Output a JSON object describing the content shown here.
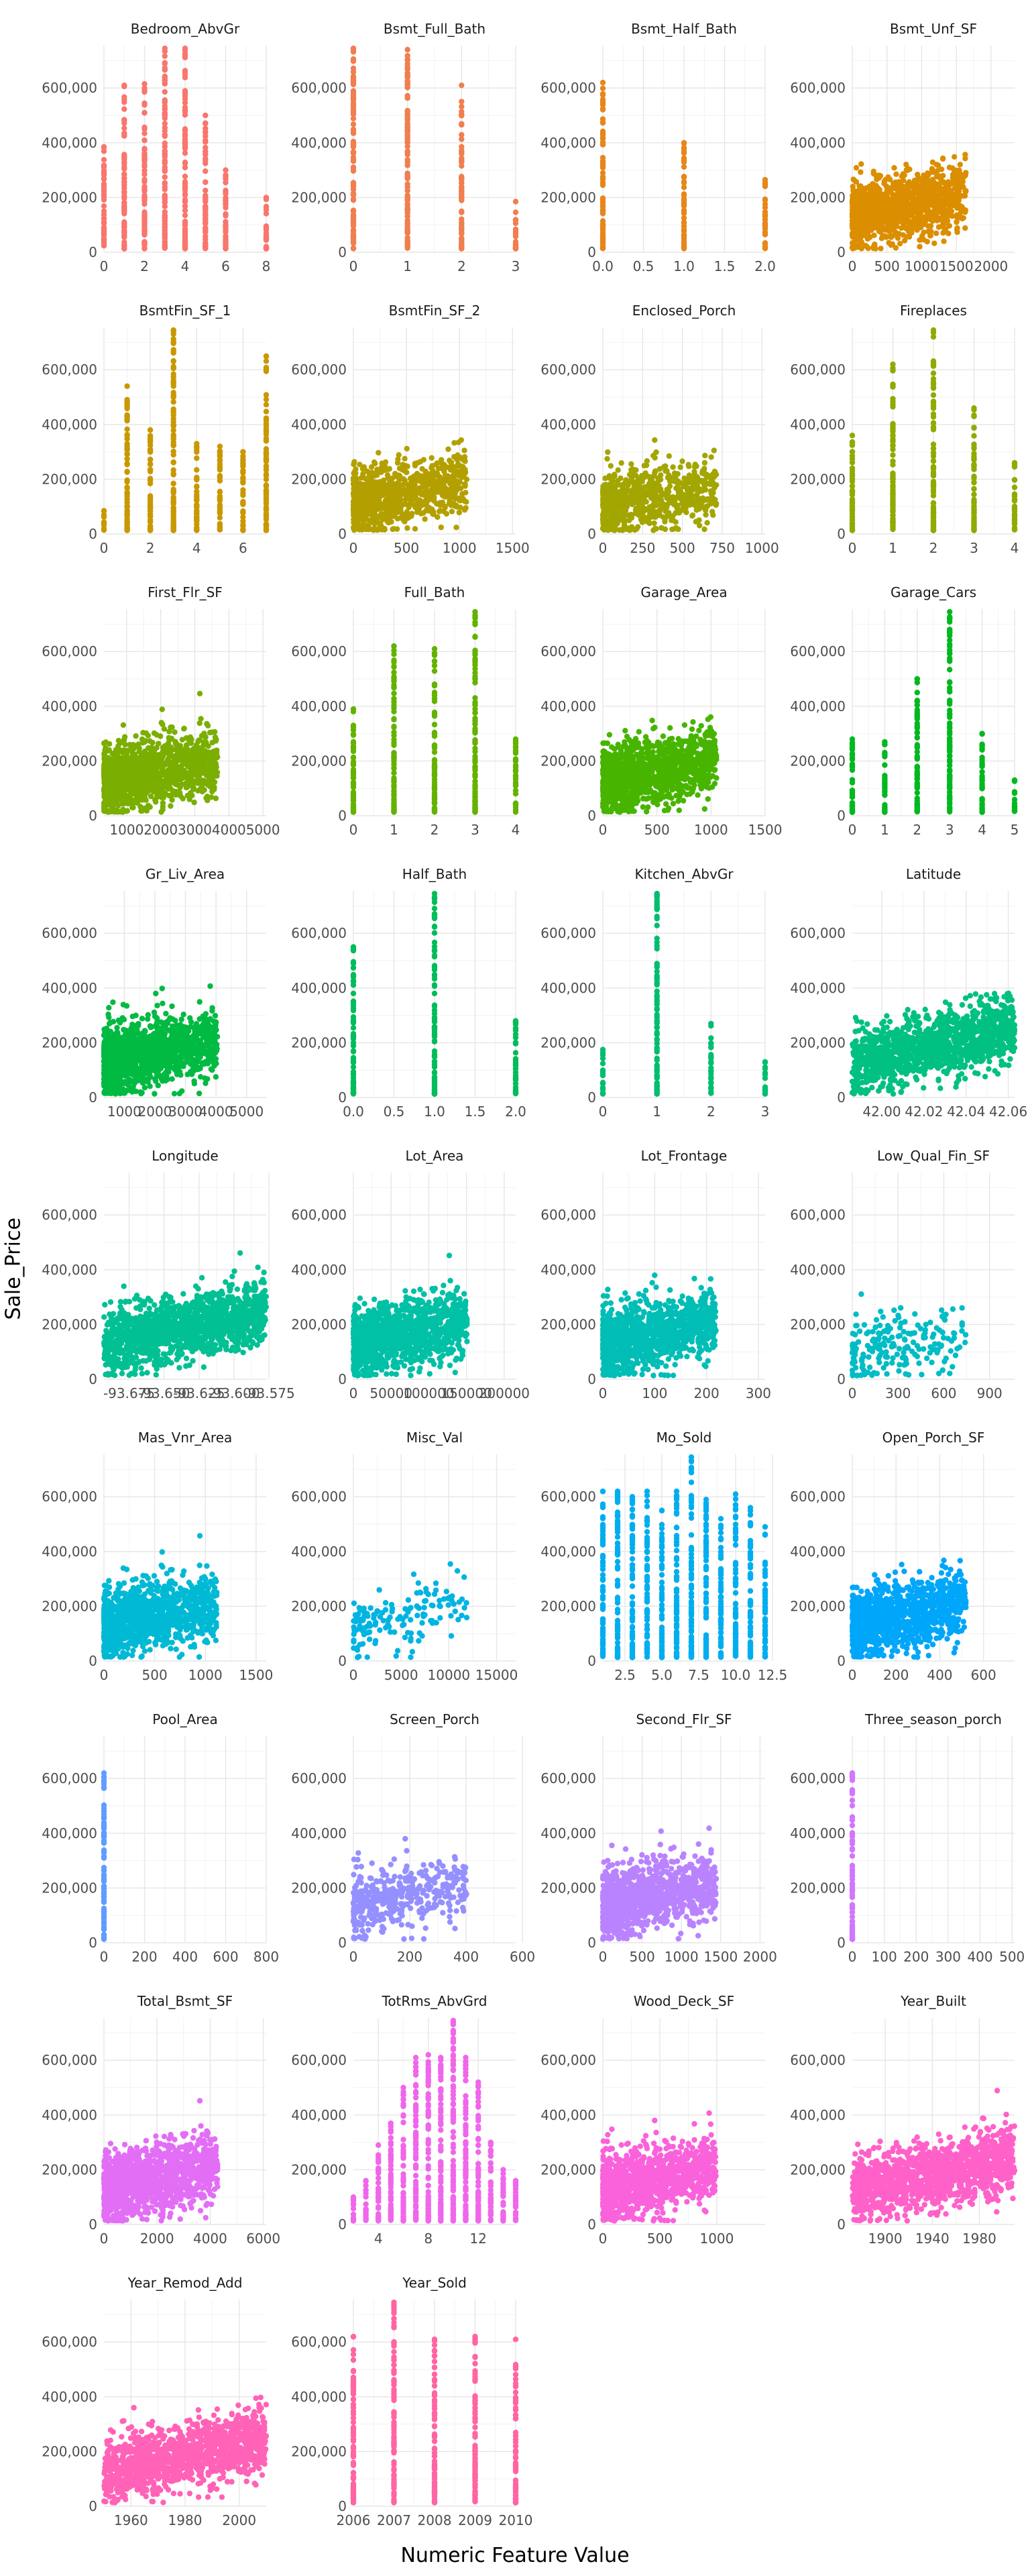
{
  "chart_data": {
    "type": "scatter",
    "xlabel": "Numeric Feature Value",
    "ylabel": "Sale_Price",
    "y_ticks": [
      0,
      200000,
      400000,
      600000
    ],
    "y_tick_labels": [
      "0",
      "200,000",
      "400,000",
      "600,000"
    ],
    "ylim": [
      0,
      755000
    ],
    "grid": true,
    "panels": [
      {
        "name": "Bedroom_AbvGr",
        "color": "#F8766D",
        "xlim": [
          0,
          8
        ],
        "x_ticks": [
          0,
          2,
          4,
          6,
          8
        ],
        "x_tick_labels": [
          "0",
          "2",
          "4",
          "6",
          "8"
        ],
        "discrete_x": [
          0,
          1,
          2,
          3,
          4,
          5,
          6,
          8
        ],
        "y_max": [
          385000,
          610000,
          615000,
          745000,
          745000,
          500000,
          300000,
          200000
        ]
      },
      {
        "name": "Bsmt_Full_Bath",
        "color": "#F07E4E",
        "xlim": [
          0,
          3
        ],
        "x_ticks": [
          0,
          1,
          2,
          3
        ],
        "x_tick_labels": [
          "0",
          "1",
          "2",
          "3"
        ],
        "discrete_x": [
          0,
          1,
          2,
          3
        ],
        "y_max": [
          745000,
          740000,
          610000,
          185000
        ]
      },
      {
        "name": "Bsmt_Half_Bath",
        "color": "#E7861B",
        "xlim": [
          0,
          2
        ],
        "x_ticks": [
          0,
          0.5,
          1,
          1.5,
          2
        ],
        "x_tick_labels": [
          "0.0",
          "0.5",
          "1.0",
          "1.5",
          "2.0"
        ],
        "discrete_x": [
          0,
          1,
          2
        ],
        "y_max": [
          620000,
          400000,
          265000
        ]
      },
      {
        "name": "Bsmt_Unf_SF",
        "color": "#DA8E00",
        "xlim": [
          0,
          2340
        ],
        "x_ticks": [
          0,
          500,
          1000,
          1500,
          2000
        ],
        "x_tick_labels": [
          "0",
          "500",
          "1000",
          "1500",
          "2000"
        ],
        "cloud": [
          1200,
          180000
        ]
      },
      {
        "name": "BsmtFin_SF_1",
        "color": "#C99800",
        "xlim": [
          0,
          7
        ],
        "x_ticks": [
          0,
          2,
          4,
          6
        ],
        "x_tick_labels": [
          "0",
          "2",
          "4",
          "6"
        ],
        "discrete_x": [
          0,
          1,
          2,
          3,
          4,
          5,
          6,
          7
        ],
        "y_max": [
          85000,
          540000,
          380000,
          745000,
          330000,
          320000,
          300000,
          650000
        ]
      },
      {
        "name": "BsmtFin_SF_2",
        "color": "#B3A000",
        "xlim": [
          0,
          1530
        ],
        "x_ticks": [
          0,
          500,
          1000,
          1500
        ],
        "x_tick_labels": [
          "0",
          "500",
          "1000",
          "1500"
        ],
        "cloud": [
          900,
          160000
        ]
      },
      {
        "name": "Enclosed_Porch",
        "color": "#A3A500",
        "xlim": [
          0,
          1020
        ],
        "x_ticks": [
          0,
          250,
          500,
          750,
          1000
        ],
        "x_tick_labels": [
          "0",
          "250",
          "500",
          "750",
          "1000"
        ],
        "cloud": [
          700,
          140000
        ]
      },
      {
        "name": "Fireplaces",
        "color": "#8FAA00",
        "xlim": [
          0,
          4
        ],
        "x_ticks": [
          0,
          1,
          2,
          3,
          4
        ],
        "x_tick_labels": [
          "0",
          "1",
          "2",
          "3",
          "4"
        ],
        "discrete_x": [
          0,
          1,
          2,
          3,
          4
        ],
        "y_max": [
          360000,
          620000,
          745000,
          460000,
          260000
        ]
      },
      {
        "name": "First_Flr_SF",
        "color": "#7AAE00",
        "xlim": [
          334,
          5095
        ],
        "x_ticks": [
          1000,
          2000,
          3000,
          4000,
          5000
        ],
        "x_tick_labels": [
          "1000",
          "2000",
          "3000",
          "4000",
          "5000"
        ],
        "cloud": [
          1300,
          170000
        ]
      },
      {
        "name": "Full_Bath",
        "color": "#64B200",
        "xlim": [
          0,
          4
        ],
        "x_ticks": [
          0,
          1,
          2,
          3,
          4
        ],
        "x_tick_labels": [
          "0",
          "1",
          "2",
          "3",
          "4"
        ],
        "discrete_x": [
          0,
          1,
          2,
          3,
          4
        ],
        "y_max": [
          390000,
          620000,
          610000,
          745000,
          280000
        ]
      },
      {
        "name": "Garage_Area",
        "color": "#47B500",
        "xlim": [
          0,
          1500
        ],
        "x_ticks": [
          0,
          500,
          1000,
          1500
        ],
        "x_tick_labels": [
          "0",
          "500",
          "1000",
          "1500"
        ],
        "cloud": [
          1300,
          175000
        ]
      },
      {
        "name": "Garage_Cars",
        "color": "#00B81F",
        "xlim": [
          0,
          5
        ],
        "x_ticks": [
          0,
          1,
          2,
          3,
          4,
          5
        ],
        "x_tick_labels": [
          "0",
          "1",
          "2",
          "3",
          "4",
          "5"
        ],
        "discrete_x": [
          0,
          1,
          2,
          3,
          4,
          5
        ],
        "y_max": [
          280000,
          270000,
          500000,
          745000,
          300000,
          130000
        ]
      },
      {
        "name": "Gr_Liv_Area",
        "color": "#00BA42",
        "xlim": [
          334,
          5642
        ],
        "x_ticks": [
          1000,
          2000,
          3000,
          4000,
          5000
        ],
        "x_tick_labels": [
          "1000",
          "2000",
          "3000",
          "4000",
          "5000"
        ],
        "cloud": [
          1300,
          180000
        ]
      },
      {
        "name": "Half_Bath",
        "color": "#00BC5A",
        "xlim": [
          0,
          2
        ],
        "x_ticks": [
          0,
          0.5,
          1,
          1.5,
          2
        ],
        "x_tick_labels": [
          "0.0",
          "0.5",
          "1.0",
          "1.5",
          "2.0"
        ],
        "discrete_x": [
          0,
          1,
          2
        ],
        "y_max": [
          550000,
          745000,
          280000
        ]
      },
      {
        "name": "Kitchen_AbvGr",
        "color": "#00BE6F",
        "xlim": [
          0,
          3
        ],
        "x_ticks": [
          0,
          1,
          2,
          3
        ],
        "x_tick_labels": [
          "0",
          "1",
          "2",
          "3"
        ],
        "discrete_x": [
          0,
          1,
          2,
          3
        ],
        "y_max": [
          175000,
          745000,
          270000,
          130000
        ]
      },
      {
        "name": "Latitude",
        "color": "#00C082",
        "xlim": [
          41.986,
          42.063
        ],
        "x_ticks": [
          42.0,
          42.02,
          42.04,
          42.06
        ],
        "x_tick_labels": [
          "42.00",
          "42.02",
          "42.04",
          "42.06"
        ],
        "cloud": [
          1300,
          180000
        ]
      },
      {
        "name": "Longitude",
        "color": "#00C094",
        "xlim": [
          -93.693,
          -93.577
        ],
        "x_ticks": [
          -93.675,
          -93.65,
          -93.625,
          -93.6,
          -93.575
        ],
        "x_tick_labels": [
          "-93.675",
          "-93.650",
          "-93.625",
          "-93.600",
          "-93.575"
        ],
        "cloud": [
          1300,
          180000
        ]
      },
      {
        "name": "Lot_Area",
        "color": "#00C0A6",
        "xlim": [
          0,
          215245
        ],
        "x_ticks": [
          0,
          50000,
          100000,
          150000,
          200000
        ],
        "x_tick_labels": [
          "0",
          "50000",
          "100000",
          "150000",
          "200000"
        ],
        "cloud": [
          1200,
          175000
        ]
      },
      {
        "name": "Lot_Frontage",
        "color": "#00BEB6",
        "xlim": [
          0,
          313
        ],
        "x_ticks": [
          0,
          100,
          200,
          300
        ],
        "x_tick_labels": [
          "0",
          "100",
          "200",
          "300"
        ],
        "cloud": [
          1200,
          180000
        ]
      },
      {
        "name": "Low_Qual_Fin_SF",
        "color": "#00BCC6",
        "xlim": [
          0,
          1064
        ],
        "x_ticks": [
          0,
          300,
          600,
          900
        ],
        "x_tick_labels": [
          "0",
          "300",
          "600",
          "900"
        ],
        "cloud": [
          200,
          130000
        ]
      },
      {
        "name": "Mas_Vnr_Area",
        "color": "#00B9D5",
        "xlim": [
          0,
          1600
        ],
        "x_ticks": [
          0,
          500,
          1000,
          1500
        ],
        "x_tick_labels": [
          "0",
          "500",
          "1000",
          "1500"
        ],
        "cloud": [
          1200,
          180000
        ]
      },
      {
        "name": "Misc_Val",
        "color": "#00B4E2",
        "xlim": [
          0,
          17000
        ],
        "x_ticks": [
          0,
          5000,
          10000,
          15000
        ],
        "x_tick_labels": [
          "0",
          "5000",
          "10000",
          "15000"
        ],
        "cloud": [
          150,
          170000
        ]
      },
      {
        "name": "Mo_Sold",
        "color": "#00AEEF",
        "xlim": [
          1,
          12
        ],
        "x_ticks": [
          2.5,
          5,
          7.5,
          10,
          12.5
        ],
        "x_tick_labels": [
          "2.5",
          "5.0",
          "7.5",
          "10.0",
          "12.5"
        ],
        "discrete_x": [
          1,
          2,
          3,
          4,
          5,
          6,
          7,
          8,
          9,
          10,
          11,
          12
        ],
        "y_max": [
          620000,
          620000,
          600000,
          620000,
          550000,
          620000,
          745000,
          590000,
          520000,
          610000,
          560000,
          490000
        ]
      },
      {
        "name": "Open_Porch_SF",
        "color": "#00A6FA",
        "xlim": [
          0,
          742
        ],
        "x_ticks": [
          0,
          200,
          400,
          600
        ],
        "x_tick_labels": [
          "0",
          "200",
          "400",
          "600"
        ],
        "cloud": [
          1100,
          180000
        ]
      },
      {
        "name": "Pool_Area",
        "color": "#619CFF",
        "xlim": [
          0,
          800
        ],
        "x_ticks": [
          0,
          200,
          400,
          600,
          800
        ],
        "x_tick_labels": [
          "0",
          "200",
          "400",
          "600",
          "800"
        ],
        "discrete_x": [
          0
        ],
        "y_max": [
          620000
        ]
      },
      {
        "name": "Screen_Porch",
        "color": "#9590FF",
        "xlim": [
          0,
          576
        ],
        "x_ticks": [
          0,
          200,
          400,
          600
        ],
        "x_tick_labels": [
          "0",
          "200",
          "400",
          "600"
        ],
        "cloud": [
          400,
          180000
        ]
      },
      {
        "name": "Second_Flr_SF",
        "color": "#B983FF",
        "xlim": [
          0,
          2065
        ],
        "x_ticks": [
          0,
          500,
          1000,
          1500,
          2000
        ],
        "x_tick_labels": [
          "0",
          "500",
          "1000",
          "1500",
          "2000"
        ],
        "cloud": [
          1100,
          190000
        ]
      },
      {
        "name": "Three_season_porch",
        "color": "#D177FF",
        "xlim": [
          0,
          508
        ],
        "x_ticks": [
          0,
          100,
          200,
          300,
          400,
          500
        ],
        "x_tick_labels": [
          "0",
          "100",
          "200",
          "300",
          "400",
          "500"
        ],
        "discrete_x": [
          0
        ],
        "y_max": [
          620000
        ]
      },
      {
        "name": "Total_Bsmt_SF",
        "color": "#E36EF6",
        "xlim": [
          0,
          6110
        ],
        "x_ticks": [
          0,
          2000,
          4000,
          6000
        ],
        "x_tick_labels": [
          "0",
          "2000",
          "4000",
          "6000"
        ],
        "cloud": [
          1300,
          175000
        ]
      },
      {
        "name": "TotRms_AbvGrd",
        "color": "#F066EA",
        "xlim": [
          2,
          15
        ],
        "x_ticks": [
          4,
          8,
          12
        ],
        "x_tick_labels": [
          "4",
          "8",
          "12"
        ],
        "discrete_x": [
          2,
          3,
          4,
          5,
          6,
          7,
          8,
          9,
          10,
          11,
          12,
          13,
          14,
          15
        ],
        "y_max": [
          100000,
          160000,
          290000,
          370000,
          500000,
          610000,
          620000,
          610000,
          745000,
          610000,
          520000,
          300000,
          200000,
          160000
        ]
      },
      {
        "name": "Wood_Deck_SF",
        "color": "#FA62DB",
        "xlim": [
          0,
          1424
        ],
        "x_ticks": [
          0,
          500,
          1000
        ],
        "x_tick_labels": [
          "0",
          "500",
          "1000"
        ],
        "cloud": [
          1100,
          180000
        ]
      },
      {
        "name": "Year_Built",
        "color": "#FF61C9",
        "xlim": [
          1872,
          2010
        ],
        "x_ticks": [
          1900,
          1940,
          1980
        ],
        "x_tick_labels": [
          "1900",
          "1940",
          "1980"
        ],
        "cloud": [
          1300,
          175000
        ]
      },
      {
        "name": "Year_Remod_Add",
        "color": "#FF62B6",
        "xlim": [
          1950,
          2010
        ],
        "x_ticks": [
          1960,
          1980,
          2000
        ],
        "x_tick_labels": [
          "1960",
          "1980",
          "2000"
        ],
        "cloud": [
          1300,
          175000
        ]
      },
      {
        "name": "Year_Sold",
        "color": "#FF65A3",
        "xlim": [
          2006,
          2010
        ],
        "x_ticks": [
          2006,
          2007,
          2008,
          2009,
          2010
        ],
        "x_tick_labels": [
          "2006",
          "2007",
          "2008",
          "2009",
          "2010"
        ],
        "discrete_x": [
          2006,
          2007,
          2008,
          2009,
          2010
        ],
        "y_max": [
          620000,
          745000,
          610000,
          620000,
          610000
        ]
      }
    ]
  }
}
